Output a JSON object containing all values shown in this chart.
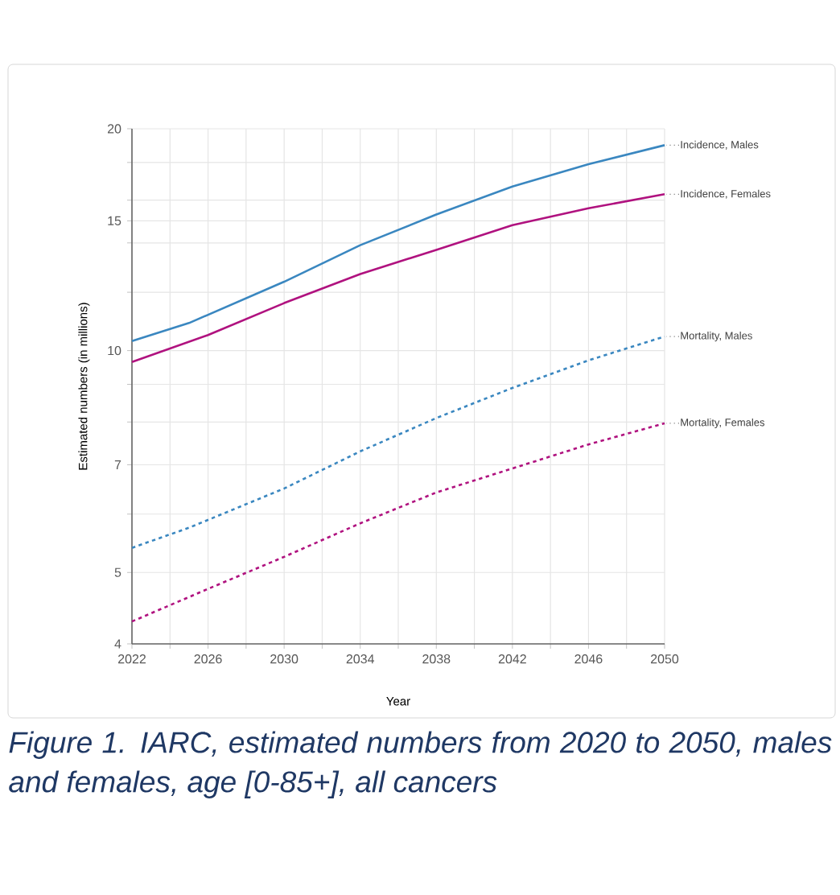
{
  "chart_data": {
    "type": "line",
    "xlabel": "Year",
    "ylabel": "Estimated numbers (in millions)",
    "x": [
      2022,
      2026,
      2030,
      2034,
      2038,
      2042,
      2046,
      2050
    ],
    "series": [
      {
        "name": "Incidence, Males",
        "color": "#3a87c0",
        "line_style": "solid",
        "x": [
          2022,
          2025,
          2030,
          2034,
          2038,
          2042,
          2046,
          2050
        ],
        "values": [
          10.3,
          10.9,
          12.4,
          13.9,
          15.3,
          16.7,
          17.9,
          19.0
        ]
      },
      {
        "name": "Incidence, Females",
        "color": "#b0127f",
        "line_style": "solid",
        "values": [
          9.65,
          10.5,
          11.6,
          12.7,
          13.7,
          14.8,
          15.6,
          16.3
        ]
      },
      {
        "name": "Mortality, Males",
        "color": "#3a87c0",
        "line_style": "dotted",
        "x": [
          2022,
          2025,
          2030,
          2034,
          2038,
          2042,
          2046,
          2050
        ],
        "values": [
          5.4,
          5.75,
          6.5,
          7.3,
          8.1,
          8.9,
          9.7,
          10.45
        ]
      },
      {
        "name": "Mortality, Females",
        "color": "#b0127f",
        "line_style": "dotted",
        "values": [
          4.29,
          4.75,
          5.25,
          5.83,
          6.42,
          6.92,
          7.46,
          7.97
        ]
      }
    ],
    "xlim": [
      2022,
      2050
    ],
    "xticks": [
      2022,
      {
        "value": 2024,
        "label": null
      },
      2026,
      {
        "value": 2028,
        "label": null
      },
      2030,
      {
        "value": 2032,
        "label": null
      },
      2034,
      {
        "value": 2036,
        "label": null
      },
      2038,
      {
        "value": 2040,
        "label": null
      },
      2042,
      {
        "value": 2044,
        "label": null
      },
      2046,
      {
        "value": 2048,
        "label": null
      },
      2050
    ],
    "ylim": [
      4,
      20
    ],
    "yticks": [
      4,
      5,
      {
        "value": 6,
        "label": null
      },
      7,
      {
        "value": 8,
        "label": null
      },
      {
        "value": 9,
        "label": null
      },
      10,
      {
        "value": 12,
        "label": null
      },
      {
        "value": 14,
        "label": null
      },
      15,
      {
        "value": 16,
        "label": null
      },
      {
        "value": 18,
        "label": null
      },
      20
    ],
    "log": true,
    "grid": true,
    "legend": false,
    "marker": "none",
    "annotations": [
      "Figure 1. IARC, estimated numbers from 2020 to 2050, males and females, age [0-85+], all cancers"
    ]
  }
}
